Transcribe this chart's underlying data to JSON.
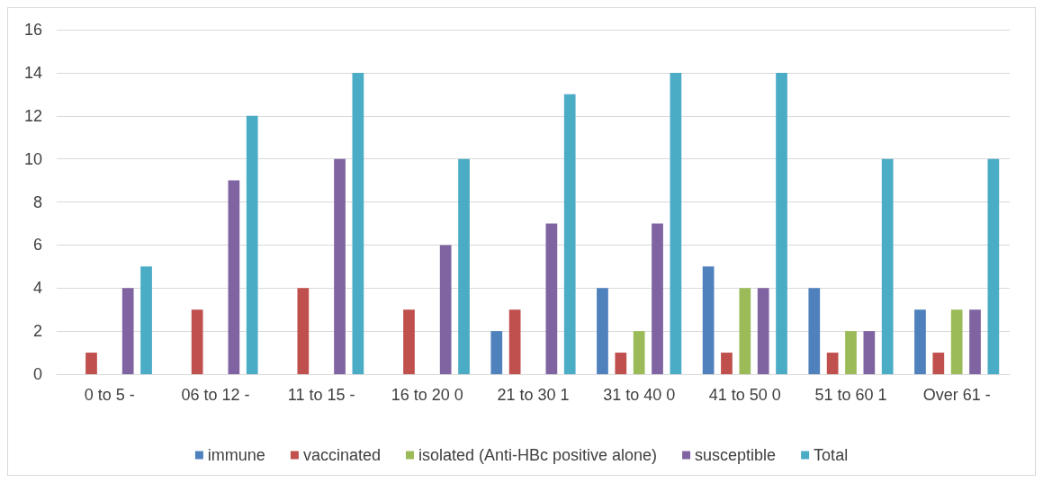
{
  "chart_data": {
    "type": "bar",
    "categories": [
      "0 to 5 -",
      "06 to 12 -",
      "11 to 15 -",
      "16 to 20 0",
      "21 to 30 1",
      "31 to 40 0",
      "41 to 50 0",
      "51 to 60 1",
      "Over 61 -"
    ],
    "series": [
      {
        "name": "immune",
        "color": "#4f81bd",
        "values": [
          0,
          0,
          0,
          0,
          2,
          4,
          5,
          4,
          3
        ]
      },
      {
        "name": "vaccinated",
        "color": "#c0504d",
        "values": [
          1,
          3,
          4,
          3,
          3,
          1,
          1,
          1,
          1
        ]
      },
      {
        "name": "isolated (Anti-HBc positive alone)",
        "color": "#9bbb59",
        "values": [
          0,
          0,
          0,
          0,
          0,
          2,
          4,
          2,
          3
        ]
      },
      {
        "name": "susceptible",
        "color": "#8064a2",
        "values": [
          4,
          9,
          10,
          6,
          7,
          7,
          4,
          2,
          3
        ]
      },
      {
        "name": "Total",
        "color": "#4bacc6",
        "values": [
          5,
          12,
          14,
          10,
          13,
          14,
          14,
          10,
          10
        ]
      }
    ],
    "ylim": [
      0,
      16
    ],
    "yticks": [
      0,
      2,
      4,
      6,
      8,
      10,
      12,
      14,
      16
    ],
    "grid": "y",
    "legend": "bottom"
  }
}
